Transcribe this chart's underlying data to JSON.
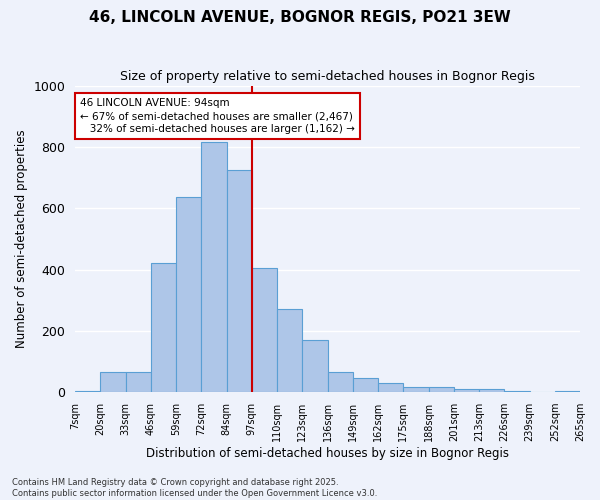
{
  "title1": "46, LINCOLN AVENUE, BOGNOR REGIS, PO21 3EW",
  "title2": "Size of property relative to semi-detached houses in Bognor Regis",
  "xlabel": "Distribution of semi-detached houses by size in Bognor Regis",
  "ylabel": "Number of semi-detached properties",
  "categories": [
    "7sqm",
    "20sqm",
    "33sqm",
    "46sqm",
    "59sqm",
    "72sqm",
    "84sqm",
    "97sqm",
    "110sqm",
    "123sqm",
    "136sqm",
    "149sqm",
    "162sqm",
    "175sqm",
    "188sqm",
    "201sqm",
    "213sqm",
    "226sqm",
    "239sqm",
    "252sqm",
    "265sqm"
  ],
  "values": [
    5,
    65,
    65,
    420,
    635,
    815,
    725,
    405,
    270,
    170,
    65,
    45,
    30,
    18,
    18,
    10,
    10,
    5,
    0,
    5
  ],
  "bar_color": "#aec6e8",
  "bar_edge_color": "#5a9fd4",
  "pct_smaller": 67,
  "n_smaller": 2467,
  "pct_larger": 32,
  "n_larger": 1162,
  "annotation_box_color": "#cc0000",
  "background_color": "#eef2fb",
  "grid_color": "#ffffff",
  "footer": "Contains HM Land Registry data © Crown copyright and database right 2025.\nContains public sector information licensed under the Open Government Licence v3.0.",
  "ylim": [
    0,
    1000
  ]
}
